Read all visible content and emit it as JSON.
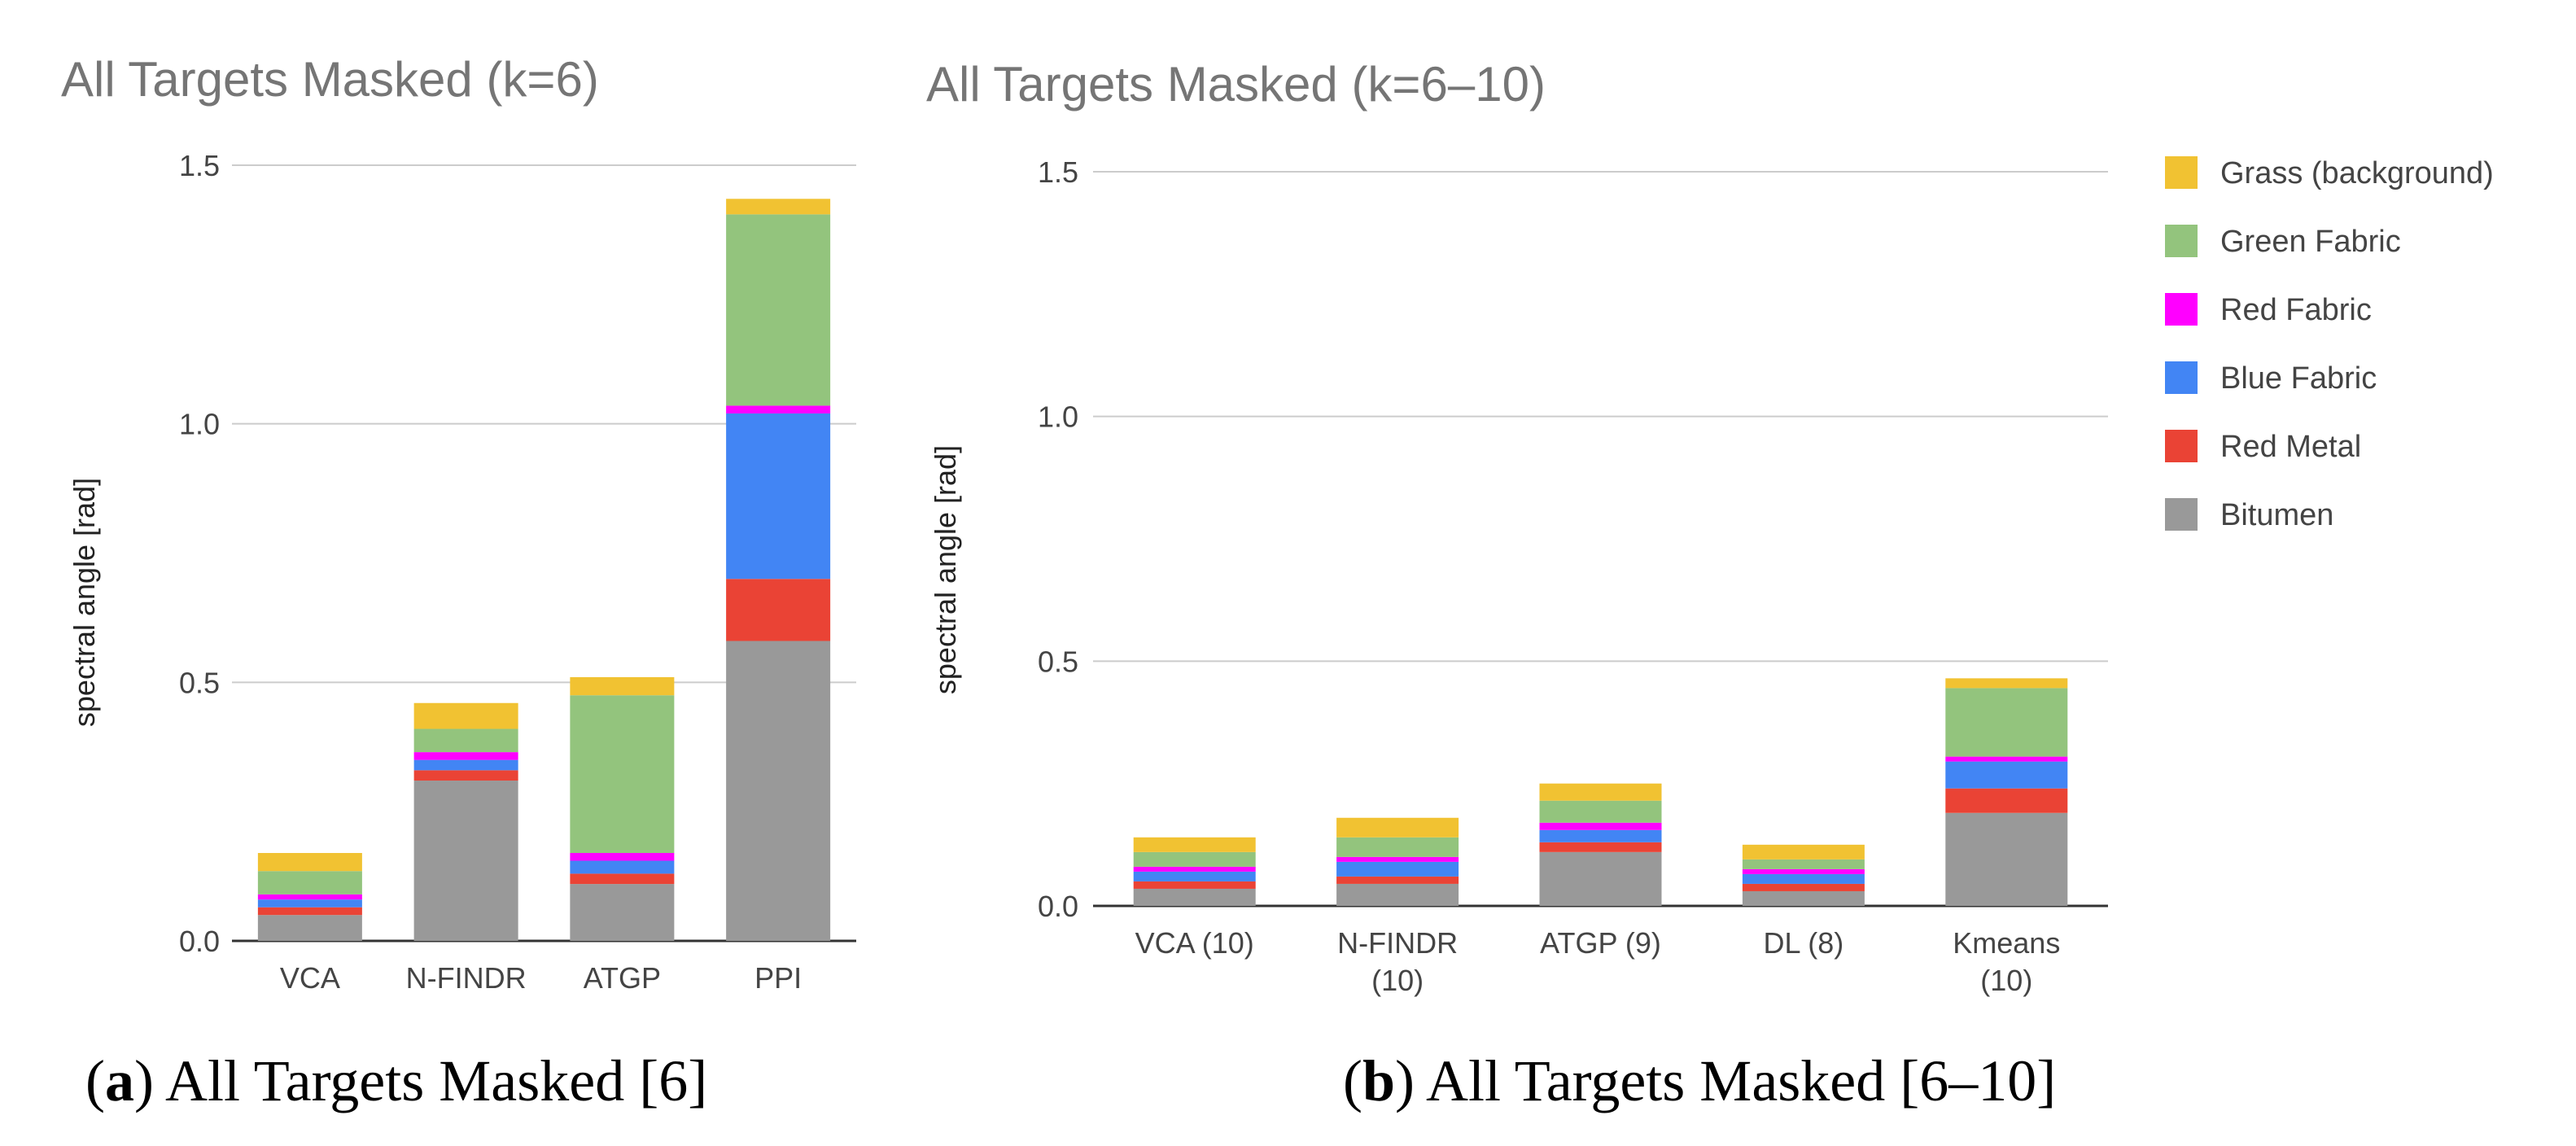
{
  "colors": {
    "Bitumen": "#999999",
    "Red Metal": "#ea4335",
    "Blue Fabric": "#4285f4",
    "Red Fabric": "#ff00ff",
    "Green Fabric": "#93c47d",
    "Grass (background)": "#f1c232"
  },
  "chart_data": [
    {
      "type": "bar",
      "stacked": true,
      "title": "All Targets Masked (k=6)",
      "ylabel": "spectral angle [rad]",
      "xlabel": "",
      "ylim": [
        0,
        1.5
      ],
      "yticks": [
        "0.0",
        "0.5",
        "1.0",
        "1.5"
      ],
      "grid": true,
      "categories": [
        [
          "VCA"
        ],
        [
          "N-FINDR"
        ],
        [
          "ATGP"
        ],
        [
          "PPI"
        ]
      ],
      "series": [
        {
          "name": "Bitumen",
          "values": [
            0.05,
            0.31,
            0.11,
            0.58
          ]
        },
        {
          "name": "Red Metal",
          "values": [
            0.015,
            0.02,
            0.02,
            0.12
          ]
        },
        {
          "name": "Blue Fabric",
          "values": [
            0.015,
            0.02,
            0.025,
            0.32
          ]
        },
        {
          "name": "Red Fabric",
          "values": [
            0.01,
            0.015,
            0.015,
            0.015
          ]
        },
        {
          "name": "Green Fabric",
          "values": [
            0.045,
            0.045,
            0.305,
            0.37
          ]
        },
        {
          "name": "Grass (background)",
          "values": [
            0.035,
            0.05,
            0.035,
            0.03
          ]
        }
      ],
      "caption": {
        "letter": "a",
        "text": ") All Targets Masked [6]"
      }
    },
    {
      "type": "bar",
      "stacked": true,
      "title": "All Targets Masked (k=6–10)",
      "ylabel": "spectral angle [rad]",
      "xlabel": "",
      "ylim": [
        0,
        1.5
      ],
      "yticks": [
        "0.0",
        "0.5",
        "1.0",
        "1.5"
      ],
      "grid": true,
      "legend": "right",
      "categories": [
        [
          "VCA (10)"
        ],
        [
          "N-FINDR",
          "(10)"
        ],
        [
          "ATGP (9)"
        ],
        [
          "DL (8)"
        ],
        [
          "Kmeans",
          "(10)"
        ]
      ],
      "series": [
        {
          "name": "Bitumen",
          "values": [
            0.035,
            0.045,
            0.11,
            0.03,
            0.19
          ]
        },
        {
          "name": "Red Metal",
          "values": [
            0.015,
            0.015,
            0.02,
            0.015,
            0.05
          ]
        },
        {
          "name": "Blue Fabric",
          "values": [
            0.02,
            0.03,
            0.025,
            0.02,
            0.055
          ]
        },
        {
          "name": "Red Fabric",
          "values": [
            0.01,
            0.01,
            0.015,
            0.01,
            0.01
          ]
        },
        {
          "name": "Green Fabric",
          "values": [
            0.03,
            0.04,
            0.045,
            0.02,
            0.14
          ]
        },
        {
          "name": "Grass (background)",
          "values": [
            0.03,
            0.04,
            0.035,
            0.03,
            0.02
          ]
        }
      ],
      "legend_order": [
        "Grass (background)",
        "Green Fabric",
        "Red Fabric",
        "Blue Fabric",
        "Red Metal",
        "Bitumen"
      ],
      "caption": {
        "letter": "b",
        "text": ") All Targets Masked [6–10]"
      }
    }
  ]
}
